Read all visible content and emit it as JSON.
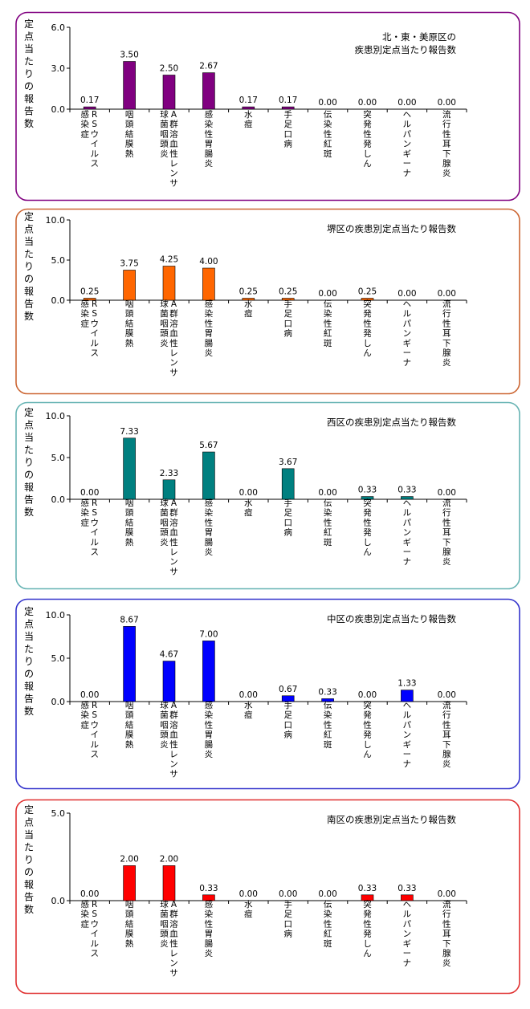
{
  "ylabel": "定点当たりの報告数",
  "categories": [
    "RSウイルス感染症",
    "咽頭結膜熱",
    "A群溶血性レンサ球菌咽頭炎",
    "感染性胃腸炎",
    "水痘",
    "手足口病",
    "伝染性紅斑",
    "突発性発しん",
    "ヘルパンギーナ",
    "流行性耳下腺炎"
  ],
  "chart_data": [
    {
      "type": "bar",
      "title": [
        "北・東・美原区の",
        "疾患別定点当たり報告数"
      ],
      "ylabel": "定点当たりの報告数",
      "color": "#800080",
      "border_color": "#800080",
      "ylim": [
        0,
        6.0
      ],
      "yticks": [
        "0.0",
        "3.0",
        "6.0"
      ],
      "values": [
        0.17,
        3.5,
        2.5,
        2.67,
        0.17,
        0.17,
        0.0,
        0.0,
        0.0,
        0.0
      ],
      "value_labels": [
        "0.17",
        "3.50",
        "2.50",
        "2.67",
        "0.17",
        "0.17",
        "0.00",
        "0.00",
        "0.00",
        "0.00"
      ]
    },
    {
      "type": "bar",
      "title": [
        "堺区の疾患別定点当たり報告数"
      ],
      "ylabel": "定点当たりの報告数",
      "color": "#ff6600",
      "border_color": "#cc6633",
      "ylim": [
        0,
        10.0
      ],
      "yticks": [
        "0.0",
        "5.0",
        "10.0"
      ],
      "values": [
        0.25,
        3.75,
        4.25,
        4.0,
        0.25,
        0.25,
        0.0,
        0.25,
        0.0,
        0.0
      ],
      "value_labels": [
        "0.25",
        "3.75",
        "4.25",
        "4.00",
        "0.25",
        "0.25",
        "0.00",
        "0.25",
        "0.00",
        "0.00"
      ]
    },
    {
      "type": "bar",
      "title": [
        "西区の疾患別定点当たり報告数"
      ],
      "ylabel": "定点当たりの報告数",
      "color": "#008080",
      "border_color": "#66b3b3",
      "ylim": [
        0,
        10.0
      ],
      "yticks": [
        "0.0",
        "5.0",
        "10.0"
      ],
      "values": [
        0.0,
        7.33,
        2.33,
        5.67,
        0.0,
        3.67,
        0.0,
        0.33,
        0.33,
        0.0
      ],
      "value_labels": [
        "0.00",
        "7.33",
        "2.33",
        "5.67",
        "0.00",
        "3.67",
        "0.00",
        "0.33",
        "0.33",
        "0.00"
      ]
    },
    {
      "type": "bar",
      "title": [
        "中区の疾患別定点当たり報告数"
      ],
      "ylabel": "定点当たりの報告数",
      "color": "#0000ff",
      "border_color": "#3333cc",
      "ylim": [
        0,
        10.0
      ],
      "yticks": [
        "0.0",
        "5.0",
        "10.0"
      ],
      "values": [
        0.0,
        8.67,
        4.67,
        7.0,
        0.0,
        0.67,
        0.33,
        0.0,
        1.33,
        0.0
      ],
      "value_labels": [
        "0.00",
        "8.67",
        "4.67",
        "7.00",
        "0.00",
        "0.67",
        "0.33",
        "0.00",
        "1.33",
        "0.00"
      ]
    },
    {
      "type": "bar",
      "title": [
        "南区の疾患別定点当たり報告数"
      ],
      "ylabel": "定点当たりの報告数",
      "color": "#ff0000",
      "border_color": "#e03030",
      "ylim": [
        0,
        5.0
      ],
      "yticks": [
        "0.0",
        "5.0"
      ],
      "values": [
        0.0,
        2.0,
        2.0,
        0.33,
        0.0,
        0.0,
        0.0,
        0.33,
        0.33,
        0.0
      ],
      "value_labels": [
        "0.00",
        "2.00",
        "2.00",
        "0.33",
        "0.00",
        "0.00",
        "0.00",
        "0.33",
        "0.33",
        "0.00"
      ]
    }
  ]
}
